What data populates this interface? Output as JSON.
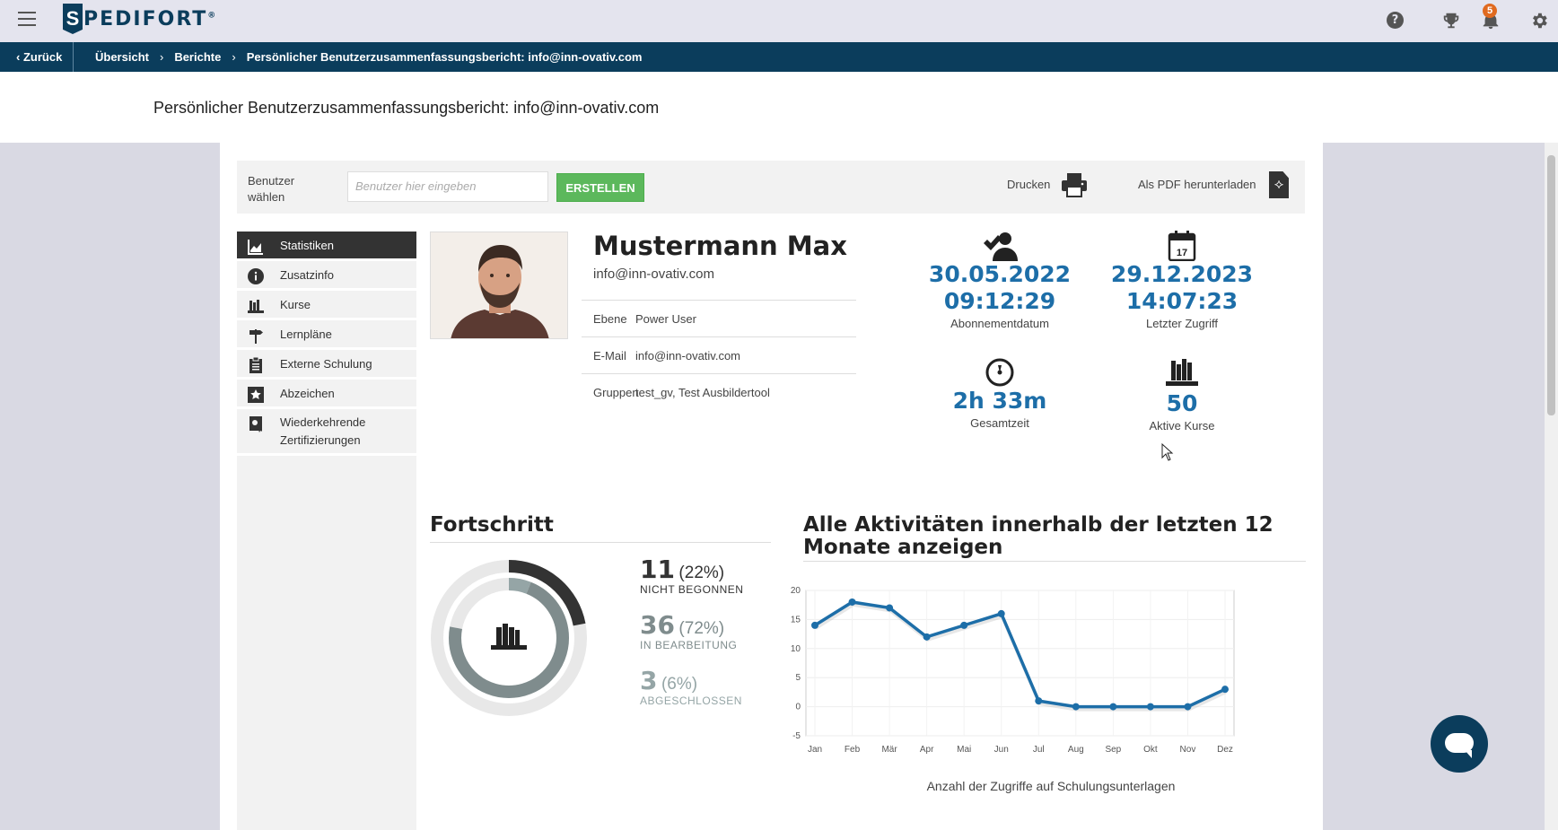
{
  "header": {
    "logo_text": "PEDIFORT",
    "logo_letter": "S",
    "notification_count": "5",
    "icons": [
      "help-icon",
      "trophy-icon",
      "bell-icon",
      "gear-icon"
    ]
  },
  "breadcrumb": {
    "back_label": "Zurück",
    "items": [
      "Übersicht",
      "Berichte",
      "Persönlicher Benutzerzusammenfassungsbericht: info@inn-ovativ.com"
    ]
  },
  "page_title": "Persönlicher Benutzerzusammenfassungsbericht: info@inn-ovativ.com",
  "toolbar": {
    "user_label": "Benutzer wählen",
    "user_placeholder": "Benutzer hier eingeben",
    "create_label": "ERSTELLEN",
    "print_label": "Drucken",
    "pdf_label": "Als PDF herunterladen"
  },
  "sidebar": {
    "items": [
      {
        "label": "Statistiken",
        "icon": "chart-icon",
        "active": true
      },
      {
        "label": "Zusatzinfo",
        "icon": "info-icon"
      },
      {
        "label": "Kurse",
        "icon": "books-icon"
      },
      {
        "label": "Lernpläne",
        "icon": "signpost-icon"
      },
      {
        "label": "Externe Schulung",
        "icon": "clipboard-icon"
      },
      {
        "label": "Abzeichen",
        "icon": "star-icon"
      },
      {
        "label": "Wiederkehrende Zertifizierungen",
        "icon": "certificate-icon"
      }
    ]
  },
  "profile": {
    "name": "Mustermann Max",
    "email": "info@inn-ovativ.com",
    "rows": [
      {
        "key": "Ebene",
        "value": "Power User"
      },
      {
        "key": "E-Mail",
        "value": "info@inn-ovativ.com"
      },
      {
        "key": "Gruppen",
        "value": "test_gv, Test Ausbildertool"
      }
    ]
  },
  "stats": {
    "subscription_date": "30.05.2022",
    "subscription_time": "09:12:29",
    "subscription_label": "Abonnementdatum",
    "last_access_date": "29.12.2023",
    "last_access_time": "14:07:23",
    "last_access_label": "Letzter Zugriff",
    "calendar_day": "17",
    "total_time": "2h 33m",
    "total_time_label": "Gesamtzeit",
    "active_courses": "50",
    "active_courses_label": "Aktive Kurse"
  },
  "progress": {
    "title": "Fortschritt",
    "items": [
      {
        "count": "11",
        "pct": "(22%)",
        "label": "NICHT BEGONNEN",
        "color": "#333333"
      },
      {
        "count": "36",
        "pct": "(72%)",
        "label": "IN BEARBEITUNG",
        "color": "#7f8c8d"
      },
      {
        "count": "3",
        "pct": "(6%)",
        "label": "ABGESCHLOSSEN",
        "color": "#95a5a6"
      }
    ],
    "fractions": [
      0.22,
      0.72,
      0.06
    ]
  },
  "activity": {
    "title": "Alle Aktivitäten innerhalb der letzten 12 Monate anzeigen",
    "caption": "Anzahl der Zugriffe auf Schulungsunterlagen"
  },
  "chart_data": {
    "type": "line",
    "categories": [
      "Jan",
      "Feb",
      "Mär",
      "Apr",
      "Mai",
      "Jun",
      "Jul",
      "Aug",
      "Sep",
      "Okt",
      "Nov",
      "Dez"
    ],
    "series": [
      {
        "values": [
          14,
          18,
          17,
          12,
          14,
          16,
          1,
          0,
          0,
          0,
          0,
          3
        ]
      }
    ],
    "xlabel": "Anzahl der Zugriffe auf Schulungsunterlagen",
    "ylabel": "",
    "ylim": [
      -5,
      20
    ],
    "yticks": [
      -5,
      0,
      5,
      10,
      15,
      20
    ],
    "grid": true,
    "color": "#1d6ea8"
  },
  "colors": {
    "brand": "#0b3d5c",
    "accent": "#1d6ea8",
    "create_button": "#5cb85c",
    "badge": "#e06a1f"
  }
}
